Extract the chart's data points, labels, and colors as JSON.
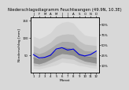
{
  "title": "Niederschlagsdiagramm Feuchtwangen (49.9N, 10.3E)",
  "months_labels": [
    "J",
    "F",
    "M",
    "A",
    "M",
    "J",
    "J",
    "A",
    "S",
    "O",
    "N",
    "D"
  ],
  "months_bottom": [
    "1",
    "2",
    "3",
    "4",
    "5",
    "6",
    "7",
    "8",
    "9",
    "10",
    "11",
    "12"
  ],
  "month_nums": [
    1,
    2,
    3,
    4,
    5,
    6,
    7,
    8,
    9,
    10,
    11,
    12
  ],
  "blue_line": [
    52,
    42,
    44,
    50,
    68,
    72,
    65,
    68,
    52,
    48,
    52,
    62
  ],
  "q_min": [
    12,
    10,
    14,
    18,
    22,
    30,
    28,
    26,
    20,
    18,
    14,
    12
  ],
  "q_10": [
    20,
    18,
    22,
    28,
    35,
    42,
    40,
    38,
    30,
    25,
    22,
    20
  ],
  "q_25": [
    28,
    25,
    30,
    38,
    48,
    55,
    53,
    50,
    40,
    33,
    30,
    27
  ],
  "q_50": [
    42,
    36,
    42,
    52,
    62,
    72,
    70,
    66,
    54,
    46,
    44,
    42
  ],
  "q_75": [
    60,
    54,
    60,
    70,
    82,
    90,
    90,
    87,
    72,
    63,
    62,
    60
  ],
  "q_90": [
    78,
    70,
    78,
    88,
    104,
    110,
    112,
    110,
    92,
    82,
    80,
    78
  ],
  "q_max": [
    105,
    98,
    105,
    115,
    135,
    145,
    148,
    143,
    124,
    108,
    105,
    104
  ],
  "ylim": [
    0,
    160
  ],
  "yticks_left": [
    50,
    100,
    150
  ],
  "ytick_labels_left": [
    "50",
    "100",
    "150"
  ],
  "right_tick_vals": [
    20,
    50,
    80,
    110,
    140
  ],
  "right_tick_labels": [
    "10%",
    "25%",
    "50%",
    "75%",
    "90%"
  ],
  "bottom_xlabel": "Monat",
  "ylabel": "Niederschlag [mm]",
  "blue_color": "#0000dd",
  "fill_outermost": "#d4d4d4",
  "fill_outer": "#c0c0c0",
  "fill_inner": "#a8a8a8",
  "fill_mid": "#909090",
  "line_median": "#707070",
  "bg_color": "#e0e0e0",
  "fig_bg": "#d8d8d8",
  "title_fontsize": 3.8,
  "axis_label_fontsize": 3.2,
  "tick_fontsize": 2.8
}
